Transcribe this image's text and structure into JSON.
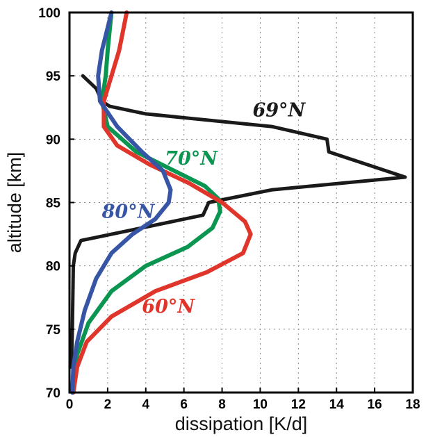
{
  "chart_data": {
    "type": "line",
    "xlabel": "dissipation [K/d]",
    "ylabel": "altitude [km]",
    "xlim": [
      0,
      18
    ],
    "ylim": [
      70,
      100
    ],
    "xticks": [
      "0",
      "2",
      "4",
      "6",
      "8",
      "10",
      "12",
      "14",
      "16",
      "18"
    ],
    "yticks": [
      "70",
      "75",
      "80",
      "85",
      "90",
      "95",
      "100"
    ],
    "grid": true,
    "series": [
      {
        "name": "69°N",
        "color": "#1a1a1a",
        "width": 5,
        "points": [
          [
            0.7,
            95
          ],
          [
            1.4,
            94
          ],
          [
            1.7,
            93
          ],
          [
            2.1,
            92.6
          ],
          [
            4,
            92
          ],
          [
            10.6,
            91
          ],
          [
            13.5,
            90
          ],
          [
            13.6,
            89
          ],
          [
            17.6,
            87
          ],
          [
            10.6,
            86
          ],
          [
            7.3,
            85
          ],
          [
            7,
            84
          ],
          [
            0.6,
            82
          ],
          [
            0.3,
            81
          ],
          [
            0.2,
            80
          ],
          [
            0.15,
            75
          ],
          [
            0.1,
            72
          ]
        ]
      },
      {
        "name": "70°N",
        "color": "#0a9650",
        "width": 6,
        "points": [
          [
            2.2,
            100
          ],
          [
            2,
            97
          ],
          [
            1.9,
            95
          ],
          [
            1.7,
            93
          ],
          [
            2.0,
            91
          ],
          [
            3.5,
            89
          ],
          [
            5.5,
            87.5
          ],
          [
            7.1,
            86.3
          ],
          [
            7.8,
            85.3
          ],
          [
            7.9,
            84.3
          ],
          [
            7.5,
            83
          ],
          [
            6.2,
            81.5
          ],
          [
            4.0,
            80
          ],
          [
            2.2,
            78
          ],
          [
            1.0,
            75.5
          ],
          [
            0.4,
            73
          ],
          [
            0.15,
            70
          ]
        ]
      },
      {
        "name": "60°N",
        "color": "#e0352b",
        "width": 6,
        "points": [
          [
            3.0,
            100
          ],
          [
            2.6,
            97
          ],
          [
            2.2,
            95
          ],
          [
            1.8,
            93
          ],
          [
            1.8,
            91
          ],
          [
            2.5,
            89.5
          ],
          [
            4.2,
            88
          ],
          [
            6.3,
            86.5
          ],
          [
            8,
            85
          ],
          [
            9.2,
            83.5
          ],
          [
            9.5,
            82.5
          ],
          [
            9.1,
            81
          ],
          [
            7.2,
            79.5
          ],
          [
            4.5,
            78
          ],
          [
            2.2,
            76
          ],
          [
            0.9,
            74
          ],
          [
            0.4,
            72
          ],
          [
            0.2,
            70
          ]
        ]
      },
      {
        "name": "80°N",
        "color": "#3755a5",
        "width": 6,
        "points": [
          [
            2.2,
            100
          ],
          [
            1.7,
            97
          ],
          [
            1.5,
            95
          ],
          [
            1.6,
            93
          ],
          [
            2.5,
            91
          ],
          [
            3.8,
            89
          ],
          [
            4.9,
            87.5
          ],
          [
            5.3,
            86
          ],
          [
            5.2,
            85
          ],
          [
            4.5,
            83.7
          ],
          [
            3.3,
            82.5
          ],
          [
            2.2,
            81
          ],
          [
            1.4,
            79
          ],
          [
            0.8,
            76.5
          ],
          [
            0.4,
            74
          ],
          [
            0.2,
            72
          ],
          [
            0.15,
            70
          ]
        ]
      }
    ],
    "annotations": [
      {
        "text": "69°N",
        "color": "#1a1a1a",
        "x": 9.6,
        "y": 91.8
      },
      {
        "text": "70°N",
        "color": "#0a9650",
        "x": 5,
        "y": 88
      },
      {
        "text": "80°N",
        "color": "#3755a5",
        "x": 1.7,
        "y": 83.8
      },
      {
        "text": "60°N",
        "color": "#e0352b",
        "x": 3.8,
        "y": 76.3
      }
    ]
  }
}
